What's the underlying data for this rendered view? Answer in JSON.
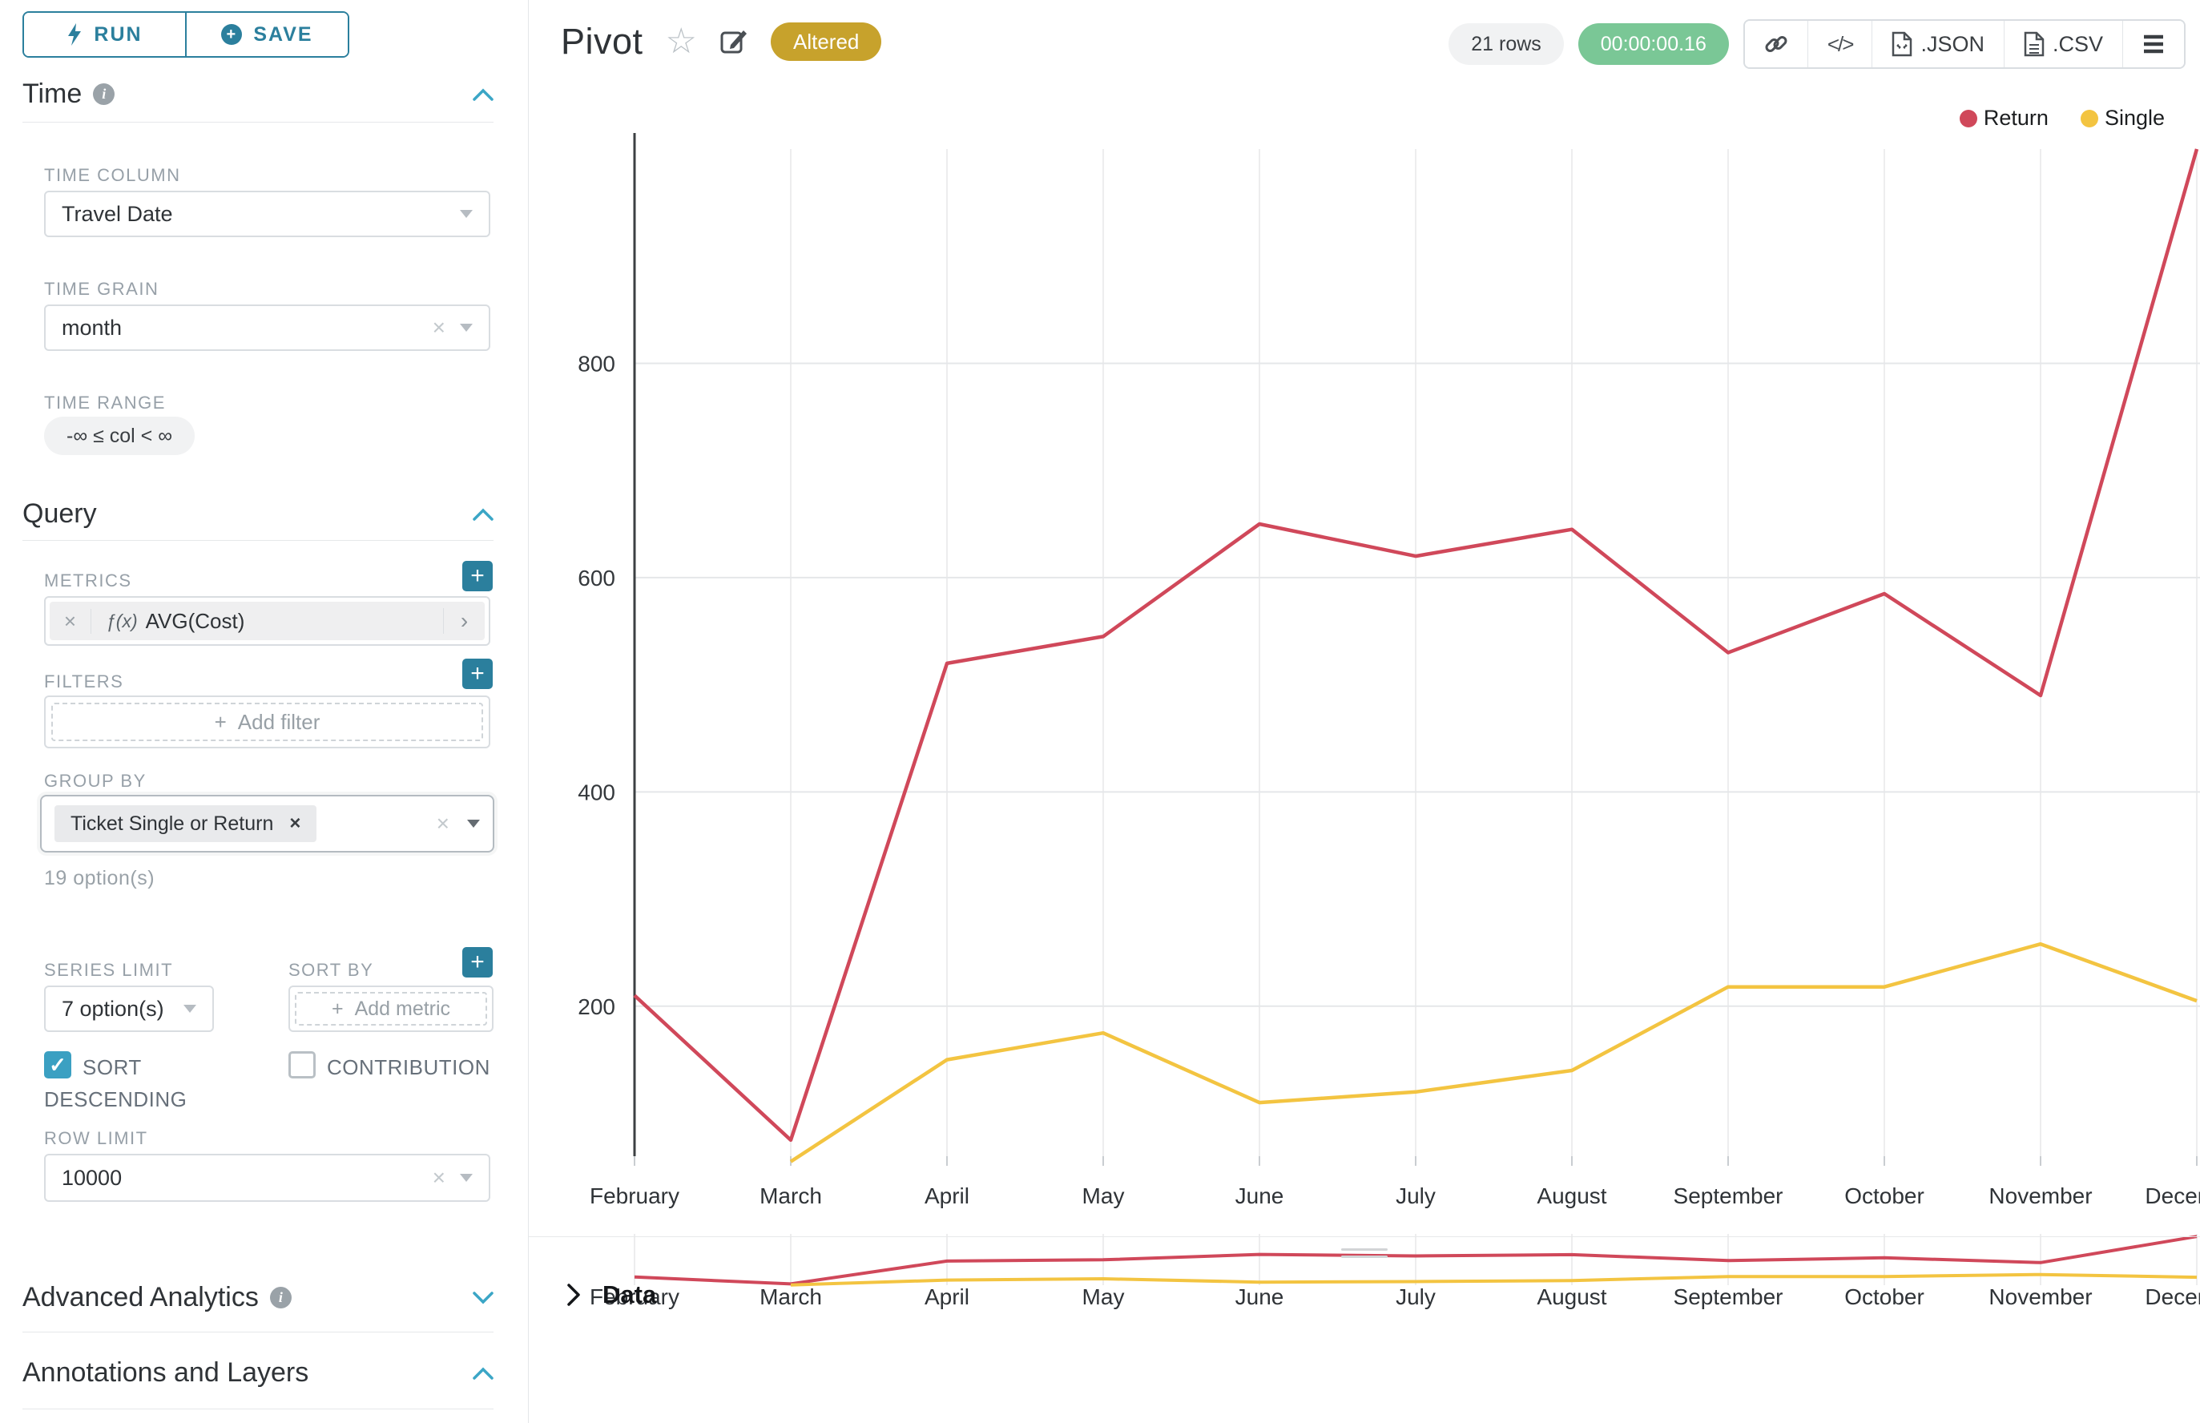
{
  "sidebar": {
    "run_label": "RUN",
    "save_label": "SAVE",
    "time": {
      "title": "Time",
      "column_label": "TIME COLUMN",
      "column_value": "Travel Date",
      "grain_label": "TIME GRAIN",
      "grain_value": "month",
      "range_label": "TIME RANGE",
      "range_value": "-∞ ≤ col < ∞"
    },
    "query": {
      "title": "Query",
      "metrics_label": "METRICS",
      "metric_fx": "ƒ(x)",
      "metric_name": "AVG(Cost)",
      "filters_label": "FILTERS",
      "add_filter_label": "Add filter",
      "group_by_label": "GROUP BY",
      "group_by_value": "Ticket Single or Return",
      "options_hint": "19 option(s)",
      "series_limit_label": "SERIES LIMIT",
      "series_limit_value": "7 option(s)",
      "sort_by_label": "SORT BY",
      "sort_by_placeholder": "Add metric",
      "sort_descending_label": "SORT DESCENDING",
      "contribution_label": "CONTRIBUTION",
      "row_limit_label": "ROW LIMIT",
      "row_limit_value": "10000"
    },
    "advanced_analytics_label": "Advanced Analytics",
    "annotations_label": "Annotations and Layers"
  },
  "header": {
    "title": "Pivot",
    "badge": "Altered",
    "rows_count": "21 rows",
    "duration": "00:00:00.16",
    "json_label": ".JSON",
    "csv_label": ".CSV"
  },
  "chart_data": {
    "type": "line",
    "title": "",
    "xlabel": "",
    "ylabel": "",
    "categories": [
      "February",
      "March",
      "April",
      "May",
      "June",
      "July",
      "August",
      "September",
      "October",
      "November",
      "December"
    ],
    "series": [
      {
        "name": "Return",
        "color": "#d0485a",
        "values": [
          210,
          75,
          520,
          545,
          650,
          620,
          645,
          530,
          585,
          490,
          1000
        ]
      },
      {
        "name": "Single",
        "color": "#f3c441",
        "values": [
          null,
          55,
          150,
          175,
          110,
          120,
          140,
          218,
          218,
          258,
          205
        ]
      }
    ],
    "yticks": [
      200,
      400,
      600,
      800
    ],
    "ylim": [
      60,
      1000
    ],
    "grid": true,
    "legend_position": "top-right",
    "has_minimap": true
  },
  "data_panel": {
    "label": "Data"
  }
}
